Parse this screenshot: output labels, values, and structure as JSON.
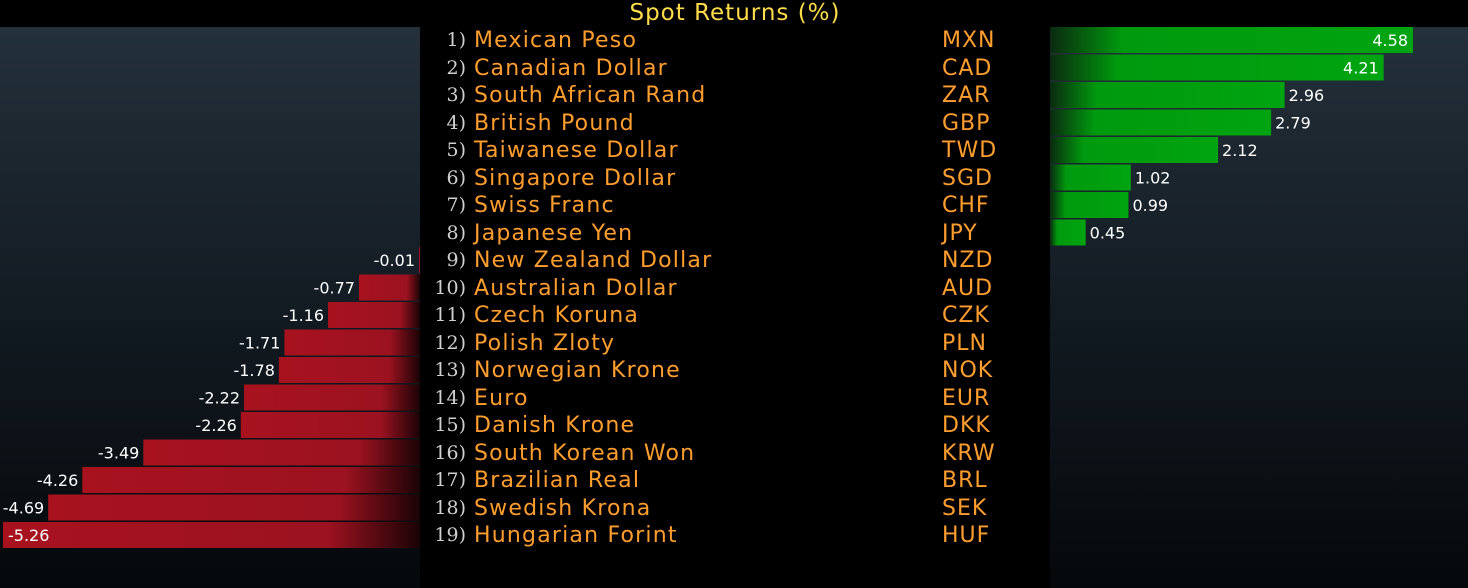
{
  "chart_data": {
    "type": "bar",
    "title": "Spot Returns (%)",
    "orientation": "horizontal",
    "rows": [
      {
        "rank": "1)",
        "name": "Mexican Peso",
        "code": "MXN",
        "value": 4.58
      },
      {
        "rank": "2)",
        "name": "Canadian Dollar",
        "code": "CAD",
        "value": 4.21
      },
      {
        "rank": "3)",
        "name": "South African Rand",
        "code": "ZAR",
        "value": 2.96
      },
      {
        "rank": "4)",
        "name": "British Pound",
        "code": "GBP",
        "value": 2.79
      },
      {
        "rank": "5)",
        "name": "Taiwanese Dollar",
        "code": "TWD",
        "value": 2.12
      },
      {
        "rank": "6)",
        "name": "Singapore Dollar",
        "code": "SGD",
        "value": 1.02
      },
      {
        "rank": "7)",
        "name": "Swiss Franc",
        "code": "CHF",
        "value": 0.99
      },
      {
        "rank": "8)",
        "name": "Japanese Yen",
        "code": "JPY",
        "value": 0.45
      },
      {
        "rank": "9)",
        "name": "New Zealand Dollar",
        "code": "NZD",
        "value": -0.01
      },
      {
        "rank": "10)",
        "name": "Australian Dollar",
        "code": "AUD",
        "value": -0.77
      },
      {
        "rank": "11)",
        "name": "Czech Koruna",
        "code": "CZK",
        "value": -1.16
      },
      {
        "rank": "12)",
        "name": "Polish Zloty",
        "code": "PLN",
        "value": -1.71
      },
      {
        "rank": "13)",
        "name": "Norwegian Krone",
        "code": "NOK",
        "value": -1.78
      },
      {
        "rank": "14)",
        "name": "Euro",
        "code": "EUR",
        "value": -2.22
      },
      {
        "rank": "15)",
        "name": "Danish Krone",
        "code": "DKK",
        "value": -2.26
      },
      {
        "rank": "16)",
        "name": "South Korean Won",
        "code": "KRW",
        "value": -3.49
      },
      {
        "rank": "17)",
        "name": "Brazilian Real",
        "code": "BRL",
        "value": -4.26
      },
      {
        "rank": "18)",
        "name": "Swedish Krona",
        "code": "SEK",
        "value": -4.69
      },
      {
        "rank": "19)",
        "name": "Hungarian Forint",
        "code": "HUF",
        "value": -5.26
      }
    ],
    "colors": {
      "positive": "#009a0e",
      "negative": "#a8121f",
      "title": "#ffdc4a",
      "label": "#ff9d2e"
    }
  }
}
